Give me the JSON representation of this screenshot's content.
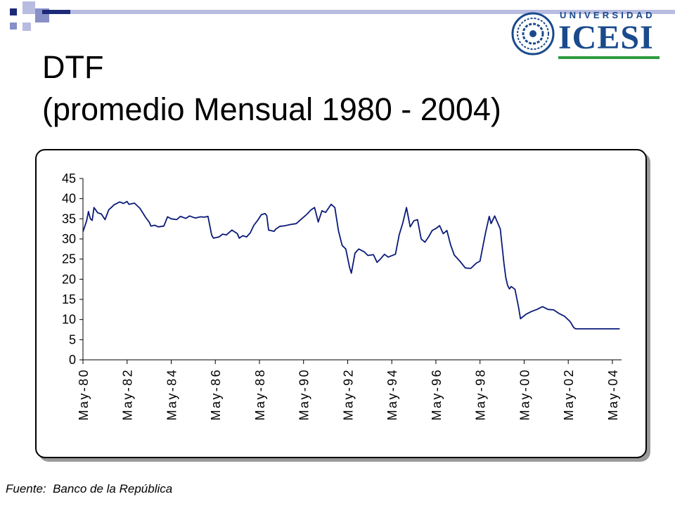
{
  "slide": {
    "title_line1": "DTF",
    "title_line2": "(promedio Mensual 1980 - 2004)",
    "source": "Fuente:  Banco de la República"
  },
  "logo": {
    "top_text": "UNIVERSIDAD",
    "main_text": "ICESI",
    "color": "#1a4a8c",
    "accent": "#2e9b3f"
  },
  "colors": {
    "deco_dark": "#1c2a78",
    "deco_light": "#b8bce0",
    "line": "#0a1a78"
  },
  "chart_data": {
    "type": "line",
    "title": "",
    "xlabel": "",
    "ylabel": "",
    "ylim": [
      0,
      45
    ],
    "yticks": [
      0,
      5,
      10,
      15,
      20,
      25,
      30,
      35,
      40,
      45
    ],
    "xlim": [
      "1980-05",
      "2004-10"
    ],
    "xticks": [
      "May-80",
      "May-82",
      "May-84",
      "May-86",
      "May-88",
      "May-90",
      "May-92",
      "May-94",
      "May-96",
      "May-98",
      "May-00",
      "May-02",
      "May-04"
    ],
    "grid": false,
    "series": [
      {
        "values": [
          [
            "1980-05",
            31.8
          ],
          [
            "1980-07",
            34.5
          ],
          [
            "1980-08",
            36.8
          ],
          [
            "1980-09",
            35.0
          ],
          [
            "1980-10",
            34.6
          ],
          [
            "1980-11",
            37.8
          ],
          [
            "1981-01",
            36.5
          ],
          [
            "1981-03",
            36.2
          ],
          [
            "1981-05",
            34.8
          ],
          [
            "1981-07",
            37.2
          ],
          [
            "1981-10",
            38.5
          ],
          [
            "1982-01",
            39.2
          ],
          [
            "1982-03",
            38.8
          ],
          [
            "1982-05",
            39.3
          ],
          [
            "1982-06",
            38.6
          ],
          [
            "1982-09",
            38.9
          ],
          [
            "1982-12",
            37.6
          ],
          [
            "1983-03",
            35.4
          ],
          [
            "1983-05",
            34.2
          ],
          [
            "1983-06",
            33.2
          ],
          [
            "1983-08",
            33.4
          ],
          [
            "1983-10",
            33.0
          ],
          [
            "1984-01",
            33.2
          ],
          [
            "1984-03",
            35.5
          ],
          [
            "1984-05",
            35.0
          ],
          [
            "1984-08",
            34.8
          ],
          [
            "1984-10",
            35.6
          ],
          [
            "1985-01",
            35.1
          ],
          [
            "1985-03",
            35.7
          ],
          [
            "1985-06",
            35.2
          ],
          [
            "1985-09",
            35.5
          ],
          [
            "1985-11",
            35.4
          ],
          [
            "1986-01",
            35.6
          ],
          [
            "1986-03",
            31.0
          ],
          [
            "1986-04",
            30.2
          ],
          [
            "1986-07",
            30.5
          ],
          [
            "1986-09",
            31.2
          ],
          [
            "1986-11",
            31.0
          ],
          [
            "1987-02",
            32.2
          ],
          [
            "1987-05",
            31.3
          ],
          [
            "1987-06",
            30.2
          ],
          [
            "1987-08",
            30.8
          ],
          [
            "1987-10",
            30.5
          ],
          [
            "1987-12",
            31.5
          ],
          [
            "1988-02",
            33.4
          ],
          [
            "1988-04",
            34.6
          ],
          [
            "1988-06",
            36.0
          ],
          [
            "1988-08",
            36.3
          ],
          [
            "1988-09",
            35.8
          ],
          [
            "1988-10",
            32.2
          ],
          [
            "1989-01",
            31.9
          ],
          [
            "1989-02",
            32.5
          ],
          [
            "1989-04",
            33.1
          ],
          [
            "1989-07",
            33.3
          ],
          [
            "1989-10",
            33.6
          ],
          [
            "1990-01",
            33.8
          ],
          [
            "1990-04",
            35.0
          ],
          [
            "1990-07",
            36.2
          ],
          [
            "1990-09",
            37.2
          ],
          [
            "1990-11",
            37.8
          ],
          [
            "1991-01",
            34.2
          ],
          [
            "1991-03",
            37.0
          ],
          [
            "1991-05",
            36.6
          ],
          [
            "1991-08",
            38.6
          ],
          [
            "1991-10",
            37.8
          ],
          [
            "1991-12",
            32.0
          ],
          [
            "1992-02",
            28.4
          ],
          [
            "1992-04",
            27.5
          ],
          [
            "1992-06",
            23.0
          ],
          [
            "1992-07",
            21.5
          ],
          [
            "1992-09",
            26.5
          ],
          [
            "1992-11",
            27.5
          ],
          [
            "1993-02",
            26.8
          ],
          [
            "1993-04",
            25.9
          ],
          [
            "1993-07",
            26.1
          ],
          [
            "1993-09",
            24.2
          ],
          [
            "1993-11",
            25.1
          ],
          [
            "1994-01",
            26.2
          ],
          [
            "1994-03",
            25.5
          ],
          [
            "1994-07",
            26.2
          ],
          [
            "1994-09",
            31.0
          ],
          [
            "1994-11",
            34.0
          ],
          [
            "1995-01",
            37.8
          ],
          [
            "1995-03",
            33.0
          ],
          [
            "1995-05",
            34.5
          ],
          [
            "1995-07",
            34.8
          ],
          [
            "1995-09",
            30.0
          ],
          [
            "1995-11",
            29.2
          ],
          [
            "1996-01",
            30.5
          ],
          [
            "1996-03",
            32.1
          ],
          [
            "1996-05",
            32.6
          ],
          [
            "1996-07",
            33.3
          ],
          [
            "1996-09",
            31.3
          ],
          [
            "1996-11",
            32.1
          ],
          [
            "1997-01",
            28.5
          ],
          [
            "1997-03",
            26.0
          ],
          [
            "1997-06",
            24.5
          ],
          [
            "1997-09",
            22.8
          ],
          [
            "1997-12",
            22.7
          ],
          [
            "1998-03",
            24.0
          ],
          [
            "1998-05",
            24.5
          ],
          [
            "1998-08",
            31.5
          ],
          [
            "1998-10",
            35.6
          ],
          [
            "1998-11",
            33.8
          ],
          [
            "1999-01",
            35.7
          ],
          [
            "1999-04",
            32.5
          ],
          [
            "1999-06",
            24.0
          ],
          [
            "1999-07",
            20.5
          ],
          [
            "1999-08",
            18.5
          ],
          [
            "1999-09",
            17.6
          ],
          [
            "1999-10",
            18.2
          ],
          [
            "1999-12",
            17.5
          ],
          [
            "2000-02",
            13.0
          ],
          [
            "2000-03",
            10.2
          ],
          [
            "2000-06",
            11.3
          ],
          [
            "2000-09",
            12.0
          ],
          [
            "2000-12",
            12.5
          ],
          [
            "2001-03",
            13.2
          ],
          [
            "2001-06",
            12.5
          ],
          [
            "2001-09",
            12.4
          ],
          [
            "2001-12",
            11.5
          ],
          [
            "2002-03",
            10.8
          ],
          [
            "2002-06",
            9.5
          ],
          [
            "2002-08",
            8.0
          ],
          [
            "2002-09",
            7.7
          ],
          [
            "2003-03",
            7.7
          ],
          [
            "2003-09",
            7.7
          ],
          [
            "2004-03",
            7.7
          ],
          [
            "2004-09",
            7.7
          ]
        ]
      }
    ]
  }
}
